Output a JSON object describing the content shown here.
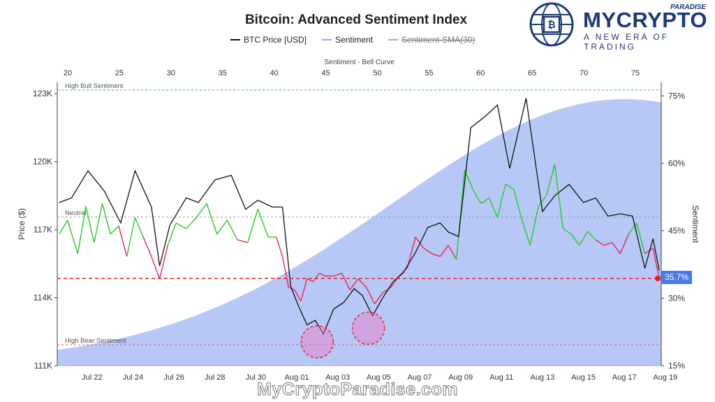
{
  "chart_data": {
    "type": "line",
    "title": "Bitcoin: Advanced Sentiment Index",
    "legend": [
      "BTC Price [USD]",
      "Sentiment",
      "Sentiment-SMA(30)"
    ],
    "ylabel_left": "Price ($)",
    "ylabel_right": "Sentiment",
    "top_axis_label": "Sentiment - Bell Curve",
    "top_ticks": [
      "20",
      "25",
      "30",
      "35",
      "40",
      "45",
      "50",
      "55",
      "60",
      "65",
      "70",
      "75"
    ],
    "y_left_ticks": [
      "123K",
      "120K",
      "117K",
      "114K",
      "111K"
    ],
    "y_left_range": [
      111000,
      123500
    ],
    "y_right_ticks": [
      "75%",
      "60%",
      "45%",
      "30%",
      "15%"
    ],
    "y_right_range": [
      15,
      78
    ],
    "x_ticks": [
      "Jul 22",
      "Jul 24",
      "Jul 26",
      "Jul 28",
      "Jul 30",
      "Aug 01",
      "Aug 03",
      "Aug 05",
      "Aug 07",
      "Aug 09",
      "Aug 11",
      "Aug 13",
      "Aug 15",
      "Aug 17",
      "Aug 19"
    ],
    "x_range_days": [
      20.3,
      49.8
    ],
    "reference_lines": [
      {
        "label": "High Bull Sentiment",
        "value": 80,
        "color": "#33cc33"
      },
      {
        "label": "Neutral",
        "value": 50,
        "color": "#999999"
      },
      {
        "label": "High Bear Sentiment",
        "value": 20,
        "color": "#e05570"
      }
    ],
    "current_sentiment": "35.7%",
    "current_value": 35.7,
    "series": [
      {
        "name": "BTC Price [USD]",
        "color": "#111111",
        "x": [
          20.4,
          21.0,
          21.8,
          22.6,
          23.4,
          24.1,
          24.9,
          25.3,
          25.8,
          26.6,
          27.2,
          28.0,
          28.8,
          29.5,
          30.1,
          30.8,
          31.3,
          31.7,
          32.1,
          32.5,
          32.9,
          33.3,
          33.8,
          34.3,
          34.8,
          35.2,
          35.7,
          36.2,
          36.7,
          37.2,
          37.8,
          38.4,
          39.0,
          39.4,
          39.9,
          40.5,
          41.2,
          41.8,
          42.4,
          43.2,
          44.0,
          44.6,
          45.3,
          46.0,
          46.6,
          47.2,
          47.8,
          48.4,
          49.0,
          49.4,
          49.7
        ],
        "values": [
          118200,
          118400,
          119600,
          118700,
          117300,
          119600,
          118000,
          115400,
          117200,
          118400,
          118200,
          119200,
          119400,
          117900,
          118300,
          118000,
          118000,
          114500,
          113600,
          112800,
          113000,
          112400,
          113500,
          113800,
          114400,
          114100,
          113200,
          114000,
          114700,
          115100,
          116000,
          117100,
          117300,
          116900,
          116700,
          121500,
          122000,
          122500,
          119700,
          122800,
          117800,
          118500,
          119000,
          118200,
          118400,
          117600,
          117700,
          117600,
          115300,
          116600,
          115200
        ]
      },
      {
        "name": "Sentiment",
        "color": "#22cc22",
        "color_bear": "#ee2255",
        "x": [
          20.4,
          20.8,
          21.3,
          21.7,
          22.1,
          22.5,
          22.9,
          23.3,
          23.7,
          24.1,
          24.5,
          24.9,
          25.3,
          25.7,
          26.1,
          26.6,
          27.1,
          27.6,
          28.1,
          28.6,
          29.1,
          29.6,
          30.1,
          30.6,
          31.0,
          31.3,
          31.6,
          31.9,
          32.2,
          32.5,
          32.8,
          33.1,
          33.4,
          33.8,
          34.2,
          34.6,
          35.0,
          35.4,
          35.8,
          36.2,
          36.6,
          37.0,
          37.4,
          37.8,
          38.2,
          38.6,
          39.0,
          39.4,
          39.8,
          40.2,
          40.6,
          41.0,
          41.4,
          41.8,
          42.2,
          42.6,
          43.0,
          43.4,
          43.8,
          44.2,
          44.6,
          45.0,
          45.4,
          45.8,
          46.2,
          46.6,
          47.0,
          47.4,
          47.8,
          48.2,
          48.6,
          49.0,
          49.4,
          49.7
        ],
        "values": [
          52,
          57,
          45,
          62,
          49,
          63,
          52,
          55,
          44,
          58,
          51,
          44,
          36,
          48,
          56,
          54,
          58,
          63,
          52,
          57,
          50,
          49,
          61,
          51,
          51,
          44,
          33,
          32,
          28,
          36,
          35,
          38,
          37,
          37,
          38,
          32,
          36,
          33,
          27,
          31,
          33,
          37,
          40,
          51,
          47,
          45,
          44,
          48,
          43,
          75,
          68,
          63,
          65,
          58,
          70,
          68,
          57,
          48,
          62,
          66,
          77,
          54,
          52,
          48,
          53,
          50,
          48,
          49,
          45,
          52,
          56,
          45,
          47,
          36
        ]
      },
      {
        "name": "Sentiment-SMA(30)",
        "color": "#999999",
        "x": [],
        "values": []
      }
    ],
    "bell_curve": {
      "center": 48.0,
      "sigma": 11.3,
      "color": "#b7c8f6"
    },
    "highlight_circles": [
      {
        "x": 33.0,
        "y": 112300
      },
      {
        "x": 35.5,
        "y": 112900
      }
    ]
  },
  "branding": {
    "logo_name": "MYCRYPTO",
    "logo_superscript": "PARADISE",
    "logo_tagline": "A NEW ERA OF TRADING",
    "watermark": "MyCryptoParadise.com"
  }
}
